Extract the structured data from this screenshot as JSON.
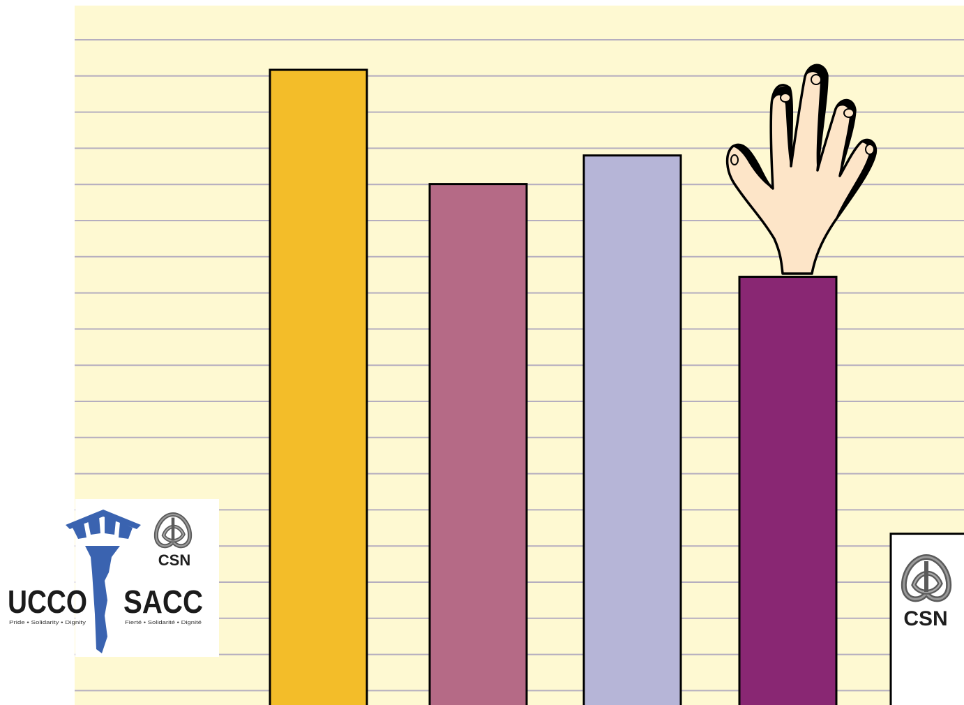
{
  "chart_data": {
    "type": "bar",
    "categories": [
      "",
      "",
      "",
      "",
      ""
    ],
    "values": [
      89,
      73,
      77,
      60,
      24
    ],
    "ylim": [
      0,
      98
    ],
    "grid": true,
    "gridlines": 19,
    "legend": "none",
    "colors": [
      "#f3bd29",
      "#b56a86",
      "#b6b5d7",
      "#892773",
      "#ffffff"
    ],
    "plot_background": "#fef9d2",
    "grid_color": "#b5aebf",
    "annotations": [
      {
        "type": "image",
        "icon": "raised-hand-icon",
        "attached_to_bar": 4
      },
      {
        "type": "image",
        "icon": "csn-logo-icon",
        "attached_to_bar": 5
      }
    ]
  },
  "logos": {
    "ucco_sacc": {
      "left_word": "UCCO",
      "right_word": "SACC",
      "left_tagline": "Pride • Solidarity • Dignity",
      "right_tagline": "Fierté • Solidarité • Dignité",
      "csn_word": "CSN",
      "key_color": "#3a63b0"
    },
    "csn_box": {
      "word": "CSN"
    }
  }
}
